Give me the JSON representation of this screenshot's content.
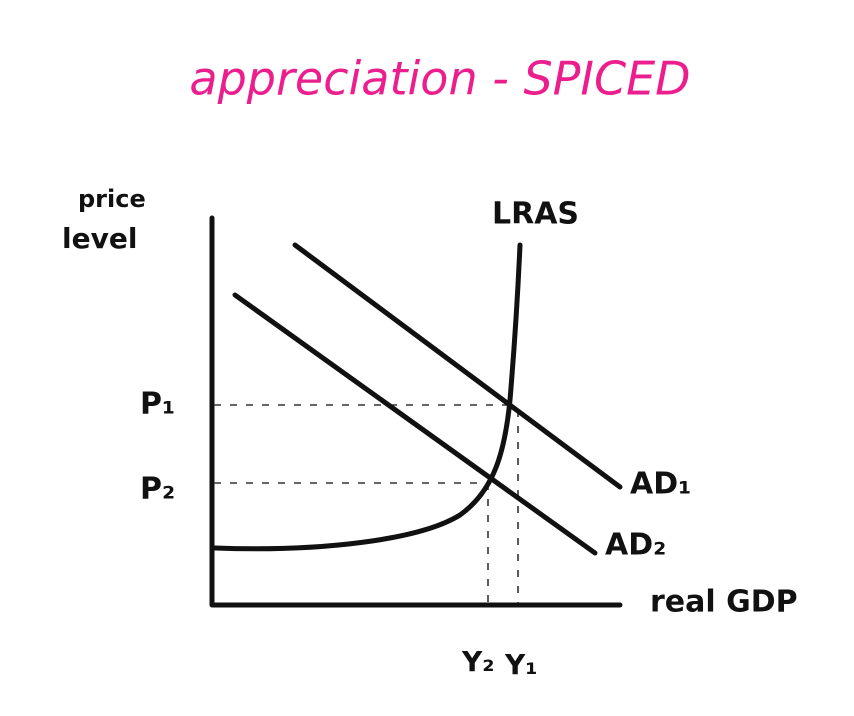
{
  "title": "appreciation - SPICED",
  "axes": {
    "y_label_line1": "price",
    "y_label_line2": "level",
    "x_label": "real GDP"
  },
  "curves": {
    "lras": "LRAS",
    "ad1": "AD₁",
    "ad2": "AD₂"
  },
  "levels": {
    "p1": "P₁",
    "p2": "P₂",
    "y2": "Y₂",
    "y1": "Y₁"
  }
}
